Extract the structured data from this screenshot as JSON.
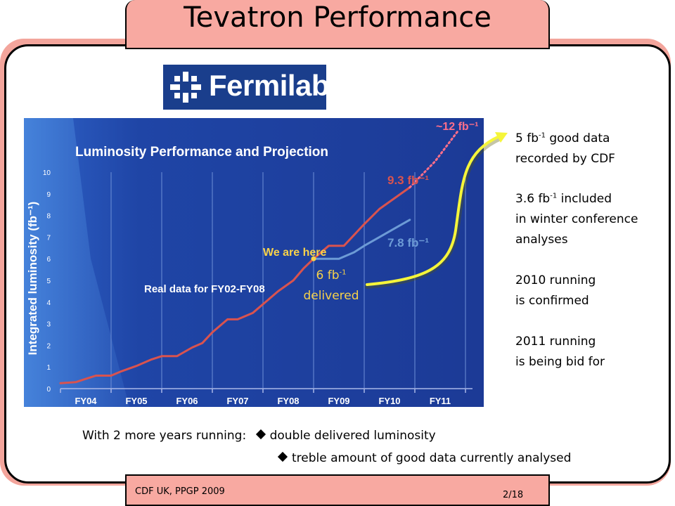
{
  "slide": {
    "title": "Tevatron Performance",
    "footer_left": "CDF UK, PPGP 2009",
    "footer_right": "2/18",
    "logo_text": "Fermilab"
  },
  "notes": {
    "n1_pre": "5 fb",
    "n1_sup": "-1",
    "n1_post": " good data",
    "n1_line2": "recorded by CDF",
    "n2_pre": "3.6 fb",
    "n2_sup": "-1",
    "n2_post": " included",
    "n2_line2": "in winter conference",
    "n2_line3": "analyses",
    "n3_line1": "2010 running",
    "n3_line2": "is confirmed",
    "n4_line1": "2011 running",
    "n4_line2": "is being bid for"
  },
  "delivered": {
    "pre": "6 fb",
    "sup": "-1",
    "line2": "delivered"
  },
  "bottom": {
    "lead": "With 2 more years running:",
    "bullet1": "double delivered luminosity",
    "bullet2": "treble amount of good data currently analysed"
  },
  "chart_data": {
    "type": "line",
    "title": "Luminosity Performance and Projection",
    "ylabel": "Integrated luminosity (fb⁻¹)",
    "xlabel": "",
    "categories": [
      "FY04",
      "FY05",
      "FY06",
      "FY07",
      "FY08",
      "FY09",
      "FY10",
      "FY11"
    ],
    "yticks": [
      "0",
      "1",
      "2",
      "3",
      "4",
      "5",
      "6",
      "7",
      "8",
      "9",
      "10"
    ],
    "ylim": [
      0,
      10
    ],
    "xlim": [
      0,
      8
    ],
    "annotations": {
      "we_are_here": "We are here",
      "real_data": "Real data for FY02-FY08",
      "high_label": "9.3 fb⁻¹",
      "low_label": "7.8 fb⁻¹",
      "extrap_label": "~12 fb⁻¹"
    },
    "colors": {
      "background": "#1e3a9a",
      "real": "#d9534f",
      "low": "#6d9bd6",
      "extrap": "#ff6f8a",
      "highlight": "#f7d24a"
    },
    "series": [
      {
        "x": [
          0,
          0.3,
          0.5,
          0.7,
          1.0,
          1.2,
          1.5,
          1.8,
          2.0,
          2.3,
          2.6,
          2.8,
          3.0,
          3.3,
          3.5,
          3.8,
          4.0,
          4.3,
          4.6,
          4.8,
          5.0,
          5.3,
          5.6,
          5.8,
          6.0,
          6.3,
          6.6,
          6.9
        ],
        "y": [
          0.25,
          0.3,
          0.45,
          0.6,
          0.6,
          0.8,
          1.05,
          1.35,
          1.5,
          1.5,
          1.9,
          2.1,
          2.6,
          3.2,
          3.2,
          3.5,
          3.9,
          4.5,
          5.0,
          5.55,
          6.0,
          6.6,
          6.6,
          7.1,
          7.6,
          8.3,
          8.8,
          9.3
        ]
      },
      {
        "x": [
          5.0,
          5.3,
          5.5,
          5.8,
          6.0,
          6.3,
          6.6,
          6.9
        ],
        "y": [
          6.0,
          6.0,
          6.0,
          6.3,
          6.6,
          7.0,
          7.4,
          7.8
        ]
      },
      {
        "x": [
          6.9,
          7.4,
          7.85
        ],
        "y": [
          9.3,
          10.5,
          11.9
        ]
      }
    ]
  }
}
